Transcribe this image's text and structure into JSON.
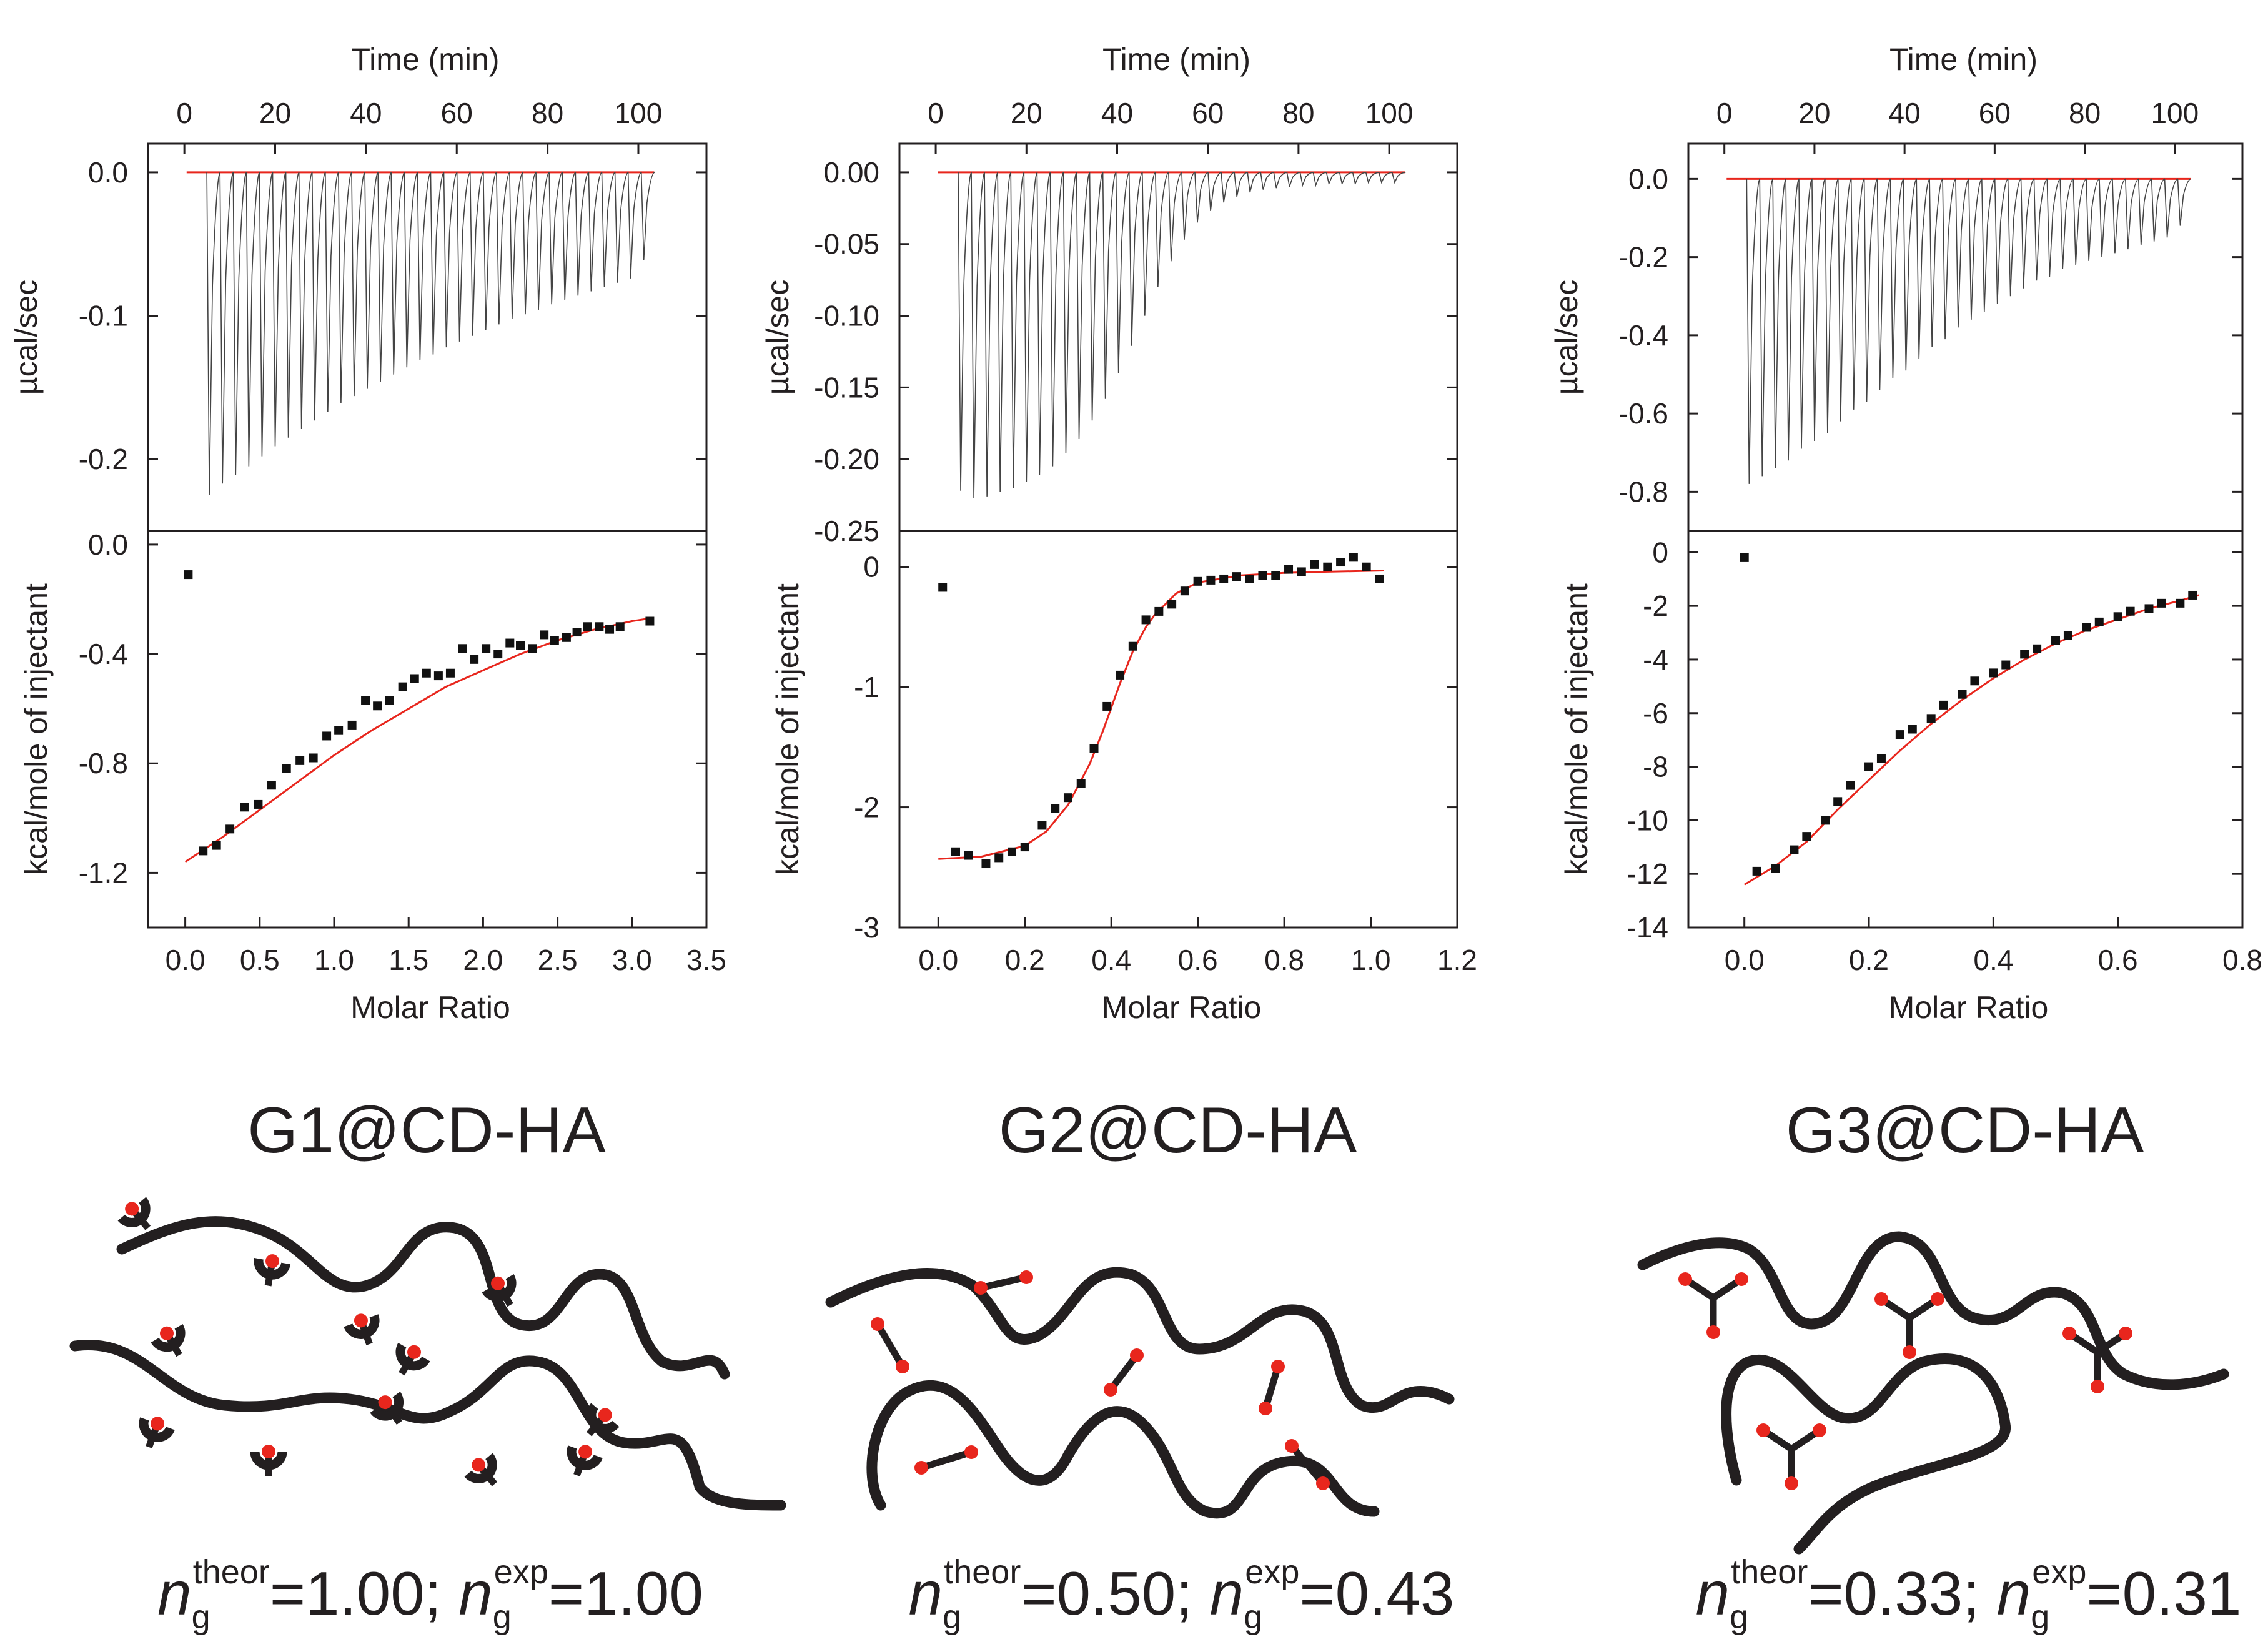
{
  "chart_data": [
    {
      "type": "scatter",
      "name": "G1@CD-HA",
      "title": "G1@CD-HA",
      "top_panel": {
        "type": "line",
        "xlabel": "Time (min)",
        "ylabel": "µcal/sec",
        "xticks": [
          "0",
          "20",
          "40",
          "60",
          "80",
          "100"
        ],
        "yticks": [
          "0.0",
          "-0.1",
          "-0.2"
        ],
        "xlim": [
          -8,
          115
        ],
        "ylim": [
          -0.25,
          0.02
        ],
        "injection_times": [
          5.5,
          8.4,
          11.3,
          14.2,
          17.1,
          20.0,
          22.9,
          25.8,
          28.7,
          31.6,
          34.5,
          37.4,
          40.3,
          43.2,
          46.1,
          49.0,
          51.9,
          54.8,
          57.7,
          60.6,
          63.5,
          66.4,
          69.3,
          72.2,
          75.1,
          78.0,
          80.9,
          83.8,
          86.7,
          89.6,
          92.5,
          95.4,
          98.3,
          101.2
        ],
        "peak_values": [
          -0.225,
          -0.217,
          -0.211,
          -0.205,
          -0.198,
          -0.191,
          -0.185,
          -0.179,
          -0.173,
          -0.167,
          -0.161,
          -0.156,
          -0.151,
          -0.146,
          -0.141,
          -0.136,
          -0.131,
          -0.127,
          -0.122,
          -0.118,
          -0.114,
          -0.11,
          -0.106,
          -0.102,
          -0.099,
          -0.096,
          -0.092,
          -0.089,
          -0.086,
          -0.083,
          -0.08,
          -0.077,
          -0.074,
          -0.061
        ],
        "baseline": 0.0,
        "trace_color": "#444444"
      },
      "bottom_panel": {
        "xlabel": "Molar Ratio",
        "ylabel": "kcal/mole of injectant",
        "xticks": [
          "0.0",
          "0.5",
          "1.0",
          "1.5",
          "2.0",
          "2.5",
          "3.0",
          "3.5"
        ],
        "yticks": [
          "0.0",
          "-0.4",
          "-0.8",
          "-1.2"
        ],
        "xlim": [
          -0.25,
          3.5
        ],
        "ylim": [
          -1.4,
          0.05
        ],
        "x": [
          0.02,
          0.12,
          0.21,
          0.3,
          0.4,
          0.49,
          0.58,
          0.68,
          0.77,
          0.86,
          0.95,
          1.03,
          1.12,
          1.21,
          1.29,
          1.37,
          1.46,
          1.54,
          1.62,
          1.7,
          1.78,
          1.86,
          1.94,
          2.02,
          2.1,
          2.18,
          2.25,
          2.33,
          2.41,
          2.48,
          2.56,
          2.63,
          2.7,
          2.78,
          2.85,
          2.92,
          3.12
        ],
        "y": [
          -0.11,
          -1.12,
          -1.1,
          -1.04,
          -0.96,
          -0.95,
          -0.88,
          -0.82,
          -0.79,
          -0.78,
          -0.7,
          -0.68,
          -0.66,
          -0.57,
          -0.59,
          -0.57,
          -0.52,
          -0.49,
          -0.47,
          -0.48,
          -0.47,
          -0.38,
          -0.42,
          -0.38,
          -0.4,
          -0.36,
          -0.37,
          -0.38,
          -0.33,
          -0.35,
          -0.34,
          -0.32,
          -0.3,
          -0.3,
          -0.31,
          -0.3,
          -0.28
        ],
        "fit": {
          "x": [
            0.0,
            0.25,
            0.5,
            0.75,
            1.0,
            1.25,
            1.5,
            1.75,
            2.0,
            2.25,
            2.5,
            2.75,
            3.0,
            3.12
          ],
          "y": [
            -1.16,
            -1.07,
            -0.97,
            -0.87,
            -0.77,
            -0.68,
            -0.6,
            -0.52,
            -0.46,
            -0.4,
            -0.35,
            -0.31,
            -0.28,
            -0.27
          ]
        }
      },
      "label": {
        "theor": "=1.00;",
        "exp": "=1.00",
        "sub": "g"
      }
    },
    {
      "type": "scatter",
      "name": "G2@CD-HA",
      "title": "G2@CD-HA",
      "top_panel": {
        "type": "line",
        "xlabel": "Time (min)",
        "ylabel": "µcal/sec",
        "xticks": [
          "0",
          "20",
          "40",
          "60",
          "80",
          "100"
        ],
        "yticks": [
          "0.00",
          "-0.05",
          "-0.10",
          "-0.15",
          "-0.20",
          "-0.25"
        ],
        "xlim": [
          -8,
          115
        ],
        "ylim": [
          -0.25,
          0.02
        ],
        "injection_times": [
          5.5,
          8.4,
          11.3,
          14.2,
          17.1,
          20.0,
          22.9,
          25.8,
          28.7,
          31.6,
          34.5,
          37.4,
          40.3,
          43.2,
          46.1,
          49.0,
          51.9,
          54.8,
          57.7,
          60.6,
          63.5,
          66.4,
          69.3,
          72.2,
          75.1,
          78.0,
          80.9,
          83.8,
          86.7,
          89.6,
          92.5,
          95.4,
          98.3,
          101.2
        ],
        "peak_values": [
          -0.222,
          -0.227,
          -0.226,
          -0.223,
          -0.22,
          -0.216,
          -0.211,
          -0.205,
          -0.196,
          -0.186,
          -0.173,
          -0.158,
          -0.14,
          -0.121,
          -0.1,
          -0.08,
          -0.062,
          -0.047,
          -0.035,
          -0.027,
          -0.021,
          -0.017,
          -0.014,
          -0.012,
          -0.011,
          -0.01,
          -0.009,
          -0.009,
          -0.008,
          -0.008,
          -0.008,
          -0.007,
          -0.007,
          -0.007
        ],
        "baseline": 0.0,
        "trace_color": "#444444"
      },
      "bottom_panel": {
        "xlabel": "Molar Ratio",
        "ylabel": "kcal/mole of injectant",
        "xticks": [
          "0.0",
          "0.2",
          "0.4",
          "0.6",
          "0.8",
          "1.0",
          "1.2"
        ],
        "yticks": [
          "0",
          "-1",
          "-2",
          "-3"
        ],
        "xlim": [
          -0.09,
          1.2
        ],
        "ylim": [
          -3.0,
          0.3
        ],
        "x": [
          0.01,
          0.04,
          0.07,
          0.11,
          0.14,
          0.17,
          0.2,
          0.24,
          0.27,
          0.3,
          0.33,
          0.36,
          0.39,
          0.42,
          0.45,
          0.48,
          0.51,
          0.54,
          0.57,
          0.6,
          0.63,
          0.66,
          0.69,
          0.72,
          0.75,
          0.78,
          0.81,
          0.84,
          0.87,
          0.9,
          0.93,
          0.96,
          0.99,
          1.02
        ],
        "y": [
          -0.17,
          -2.37,
          -2.4,
          -2.47,
          -2.42,
          -2.37,
          -2.33,
          -2.15,
          -2.01,
          -1.92,
          -1.8,
          -1.51,
          -1.16,
          -0.9,
          -0.66,
          -0.44,
          -0.37,
          -0.31,
          -0.2,
          -0.12,
          -0.11,
          -0.1,
          -0.08,
          -0.1,
          -0.07,
          -0.07,
          -0.02,
          -0.04,
          0.02,
          0.0,
          0.04,
          0.08,
          0.0,
          -0.1
        ],
        "fit": {
          "x": [
            0.0,
            0.1,
            0.2,
            0.25,
            0.3,
            0.35,
            0.38,
            0.4,
            0.42,
            0.45,
            0.48,
            0.5,
            0.55,
            0.6,
            0.7,
            0.8,
            0.9,
            1.03
          ],
          "y": [
            -2.43,
            -2.41,
            -2.32,
            -2.2,
            -1.98,
            -1.64,
            -1.37,
            -1.17,
            -0.97,
            -0.7,
            -0.5,
            -0.4,
            -0.22,
            -0.13,
            -0.07,
            -0.05,
            -0.04,
            -0.03
          ]
        }
      },
      "label": {
        "theor": "=0.50;",
        "exp": "=0.43",
        "sub": "g"
      }
    },
    {
      "type": "scatter",
      "name": "G3@CD-HA",
      "title": "G3@CD-HA",
      "top_panel": {
        "type": "line",
        "xlabel": "Time (min)",
        "ylabel": "µcal/sec",
        "xticks": [
          "0",
          "20",
          "40",
          "60",
          "80",
          "100"
        ],
        "yticks": [
          "0.0",
          "-0.2",
          "-0.4",
          "-0.6",
          "-0.8"
        ],
        "xlim": [
          -8,
          115
        ],
        "ylim": [
          -0.9,
          0.09
        ],
        "injection_times": [
          5.5,
          8.4,
          11.3,
          14.2,
          17.1,
          20.0,
          22.9,
          25.8,
          28.7,
          31.6,
          34.5,
          37.4,
          40.3,
          43.2,
          46.1,
          49.0,
          51.9,
          54.8,
          57.7,
          60.6,
          63.5,
          66.4,
          69.3,
          72.2,
          75.1,
          78.0,
          80.9,
          83.8,
          86.7,
          89.6,
          92.5,
          95.4,
          98.3,
          101.2
        ],
        "peak_values": [
          -0.78,
          -0.76,
          -0.74,
          -0.72,
          -0.69,
          -0.67,
          -0.65,
          -0.62,
          -0.59,
          -0.57,
          -0.54,
          -0.51,
          -0.49,
          -0.46,
          -0.43,
          -0.41,
          -0.38,
          -0.36,
          -0.34,
          -0.32,
          -0.3,
          -0.28,
          -0.26,
          -0.25,
          -0.23,
          -0.22,
          -0.21,
          -0.2,
          -0.19,
          -0.18,
          -0.17,
          -0.16,
          -0.15,
          -0.12
        ],
        "baseline": 0.0,
        "trace_color": "#444444"
      },
      "bottom_panel": {
        "xlabel": "Molar Ratio",
        "ylabel": "kcal/mole of injectant",
        "xticks": [
          "0.0",
          "0.2",
          "0.4",
          "0.6",
          "0.8"
        ],
        "yticks": [
          "0",
          "-2",
          "-4",
          "-6",
          "-8",
          "-10",
          "-12",
          "-14"
        ],
        "xlim": [
          -0.09,
          0.8
        ],
        "ylim": [
          -14.0,
          0.8
        ],
        "x": [
          0.0,
          0.02,
          0.05,
          0.08,
          0.1,
          0.13,
          0.15,
          0.17,
          0.2,
          0.22,
          0.25,
          0.27,
          0.3,
          0.32,
          0.35,
          0.37,
          0.4,
          0.42,
          0.45,
          0.47,
          0.5,
          0.52,
          0.55,
          0.57,
          0.6,
          0.62,
          0.65,
          0.67,
          0.7,
          0.72
        ],
        "y": [
          -0.2,
          -11.9,
          -11.8,
          -11.1,
          -10.6,
          -10.0,
          -9.3,
          -8.7,
          -8.0,
          -7.7,
          -6.8,
          -6.6,
          -6.2,
          -5.7,
          -5.3,
          -4.8,
          -4.5,
          -4.2,
          -3.8,
          -3.6,
          -3.3,
          -3.1,
          -2.8,
          -2.6,
          -2.4,
          -2.2,
          -2.1,
          -1.9,
          -1.9,
          -1.6
        ],
        "fit": {
          "x": [
            0.0,
            0.05,
            0.1,
            0.15,
            0.2,
            0.25,
            0.3,
            0.35,
            0.4,
            0.45,
            0.5,
            0.55,
            0.6,
            0.65,
            0.7,
            0.73
          ],
          "y": [
            -12.4,
            -11.7,
            -10.8,
            -9.6,
            -8.5,
            -7.4,
            -6.4,
            -5.5,
            -4.7,
            -4.0,
            -3.4,
            -2.9,
            -2.5,
            -2.1,
            -1.8,
            -1.6
          ]
        }
      },
      "label": {
        "theor": "=0.33;",
        "exp": "=0.31",
        "sub": "g"
      }
    }
  ],
  "label_common": {
    "n": "n",
    "theor_sup": "theor",
    "exp_sup": "exp"
  }
}
